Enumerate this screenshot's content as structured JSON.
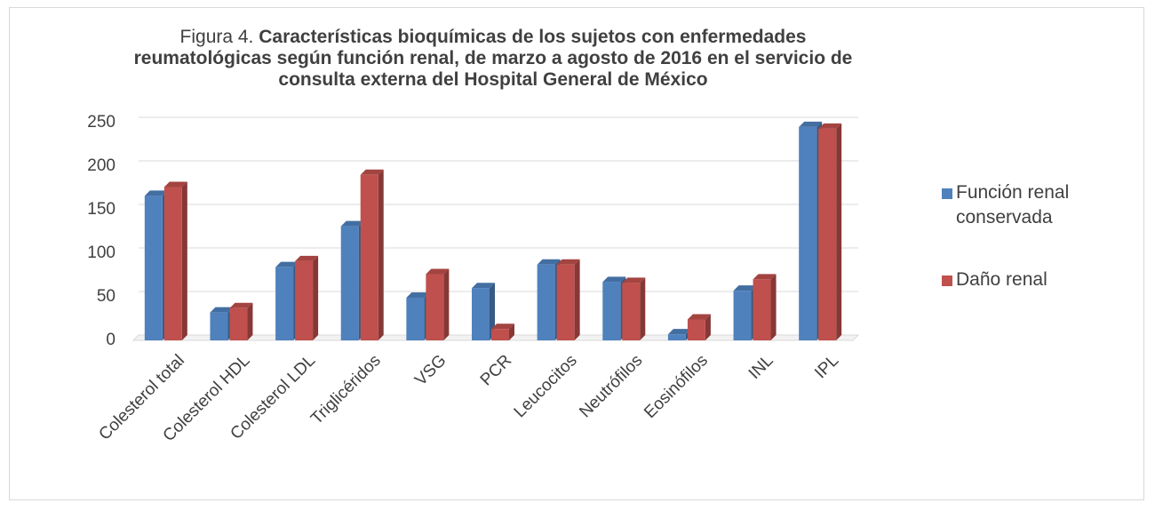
{
  "chart_data": {
    "type": "bar",
    "title_label": "Figura 4.",
    "title": "Características bioquímicas de los sujetos con enfermedades reumatológicas según función renal, de marzo a agosto de 2016 en el servicio de consulta externa del Hospital General de México",
    "categories": [
      "Colesterol total",
      "Colesterol HDL",
      "Colesterol LDL",
      "Triglicéridos",
      "VSG",
      "PCR",
      "Leucocitos",
      "Neutrófilos",
      "Eosinófilos",
      "INL",
      "IPL"
    ],
    "series": [
      {
        "name": "Función renal conservada",
        "color": "#4f81bd",
        "values": [
          166,
          32,
          84,
          131,
          49,
          60,
          87,
          67,
          7,
          57,
          245
        ]
      },
      {
        "name": "Daño renal",
        "color": "#c0504d",
        "values": [
          176,
          37,
          91,
          190,
          76,
          13,
          87,
          66,
          24,
          70,
          243
        ]
      }
    ],
    "ylim": [
      0,
      250
    ],
    "yticks": [
      0,
      50,
      100,
      150,
      200,
      250
    ],
    "grid": true,
    "legend": "right"
  }
}
